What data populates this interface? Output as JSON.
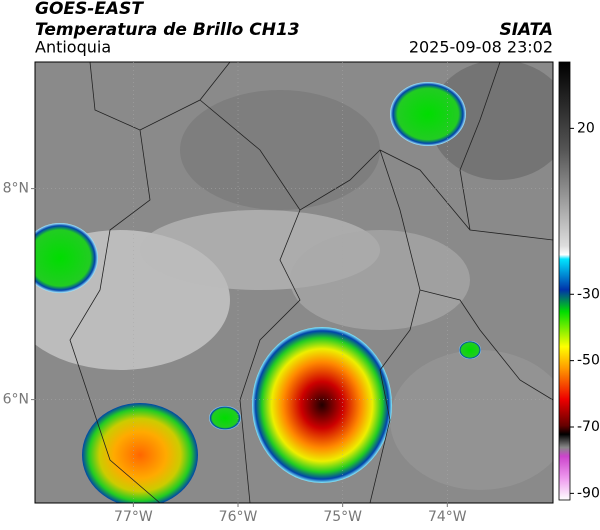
{
  "header": {
    "title": "GOES-EAST",
    "subtitle": "Temperatura de Brillo CH13",
    "source": "SIATA",
    "region": "Antioquia",
    "datetime": "2025-09-08 23:02"
  },
  "map": {
    "xlim": [
      -77.94,
      -72.99
    ],
    "ylim": [
      5.02,
      9.2
    ],
    "xticks": [
      {
        "value": -77,
        "label": "77°W"
      },
      {
        "value": -76,
        "label": "76°W"
      },
      {
        "value": -75,
        "label": "75°W"
      },
      {
        "value": -74,
        "label": "74°W"
      }
    ],
    "yticks": [
      {
        "value": 8,
        "label": "8°N"
      },
      {
        "value": 6,
        "label": "6°N"
      }
    ]
  },
  "colorbar": {
    "lim": [
      -92,
      40
    ],
    "ticks": [
      20,
      -30,
      -50,
      -70,
      -90
    ]
  }
}
